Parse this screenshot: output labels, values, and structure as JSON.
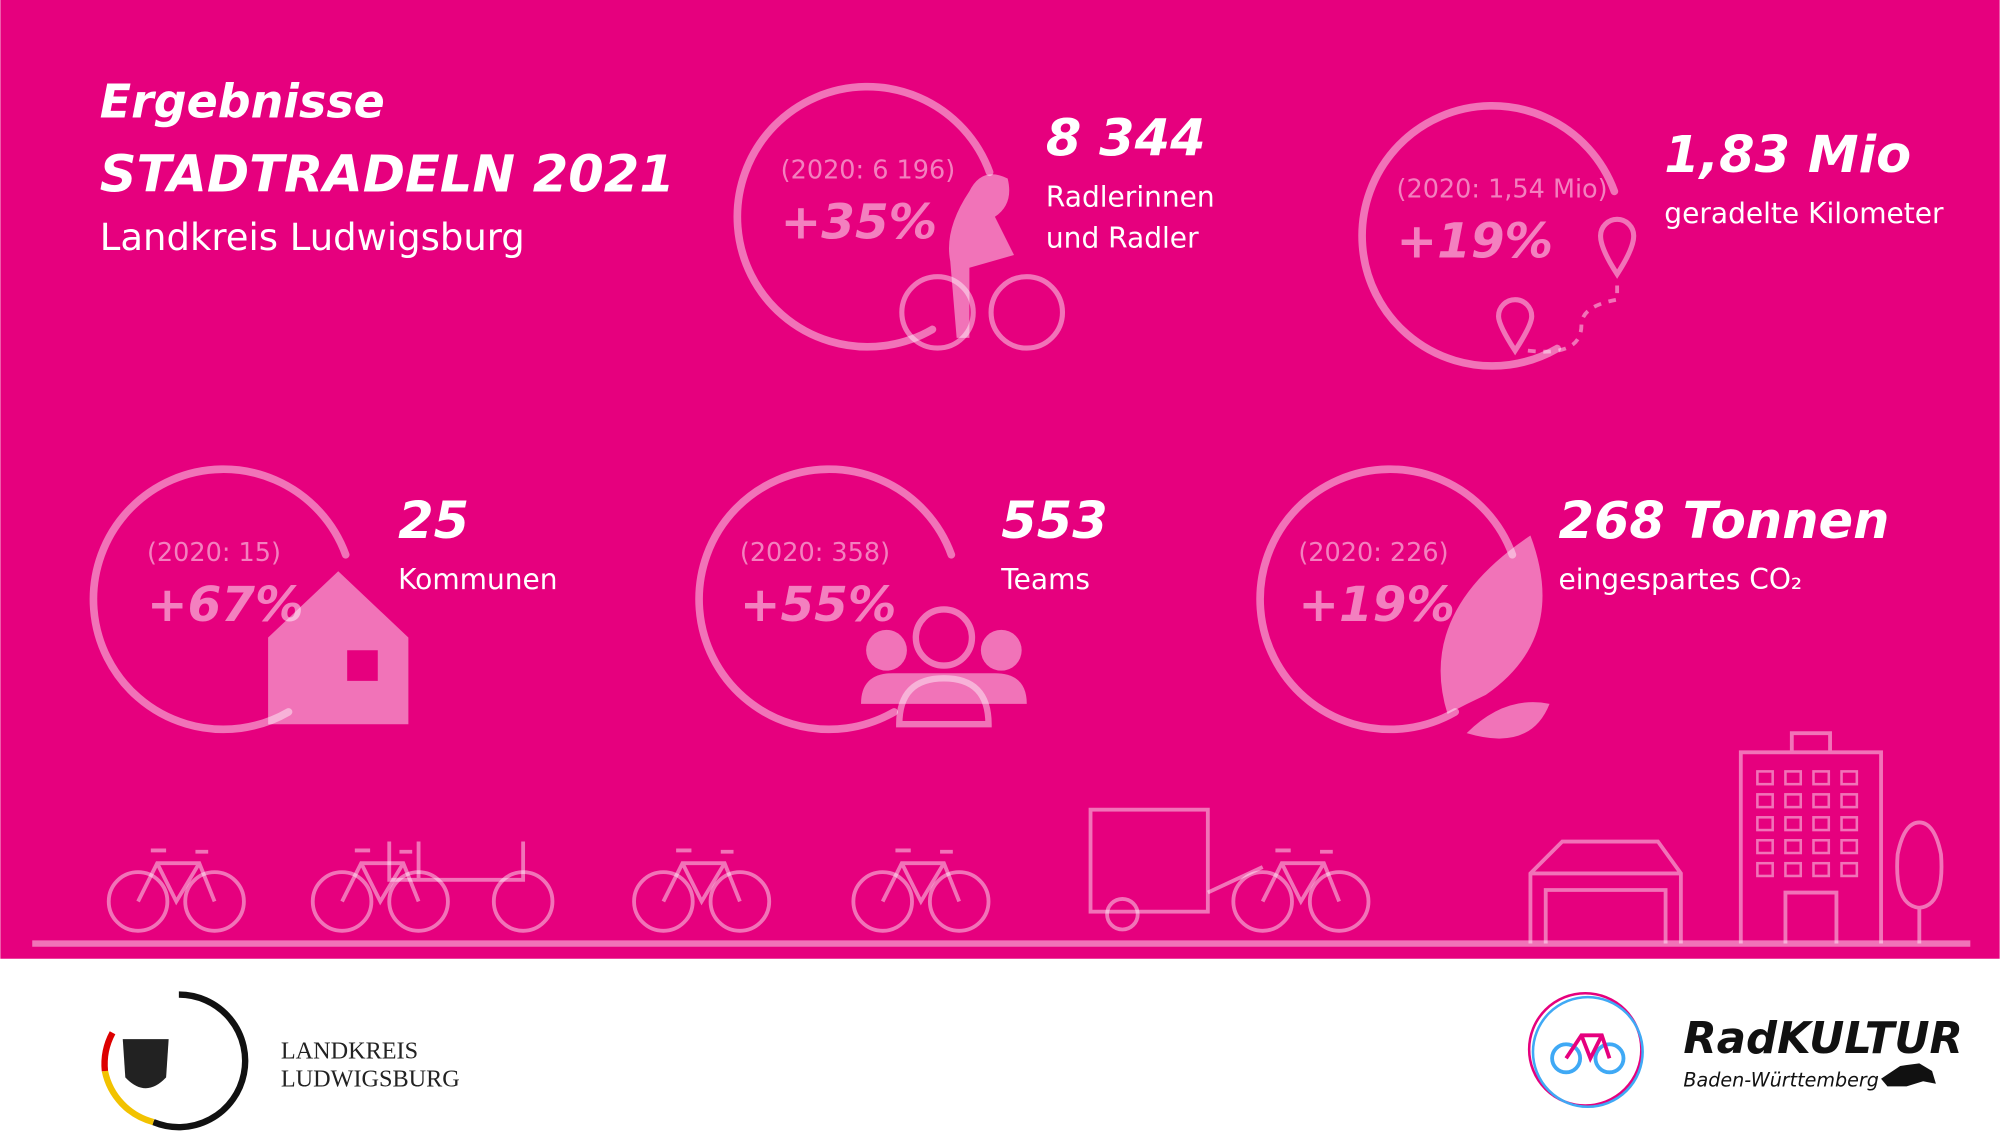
{
  "header": {
    "title": "Ergebnisse",
    "subtitle": "STADTRADELN 2021",
    "region": "Landkreis Ludwigsburg"
  },
  "stats": [
    {
      "previous": "(2020: 6 196)",
      "change": "+35%",
      "value": "8 344",
      "label": [
        "Radlerinnen",
        "und Radler"
      ]
    },
    {
      "previous": "(2020: 1,54 Mio)",
      "change": "+19%",
      "value": "1,83 Mio",
      "label": [
        "geradelte Kilometer"
      ]
    },
    {
      "previous": "(2020: 15)",
      "change": "+67%",
      "value": "25",
      "label": [
        "Kommunen"
      ]
    },
    {
      "previous": "(2020: 358)",
      "change": "+55%",
      "value": "553",
      "label": [
        "Teams"
      ]
    },
    {
      "previous": "(2020: 226)",
      "change": "+19%",
      "value": "268 Tonnen",
      "label": [
        "eingespartes CO₂"
      ]
    }
  ],
  "footer": {
    "left_logo": [
      "LANDKREIS",
      "LUDWIGSBURG"
    ],
    "right_logo": {
      "name": "RadKULTUR",
      "region": "Baden-Württemberg"
    }
  }
}
